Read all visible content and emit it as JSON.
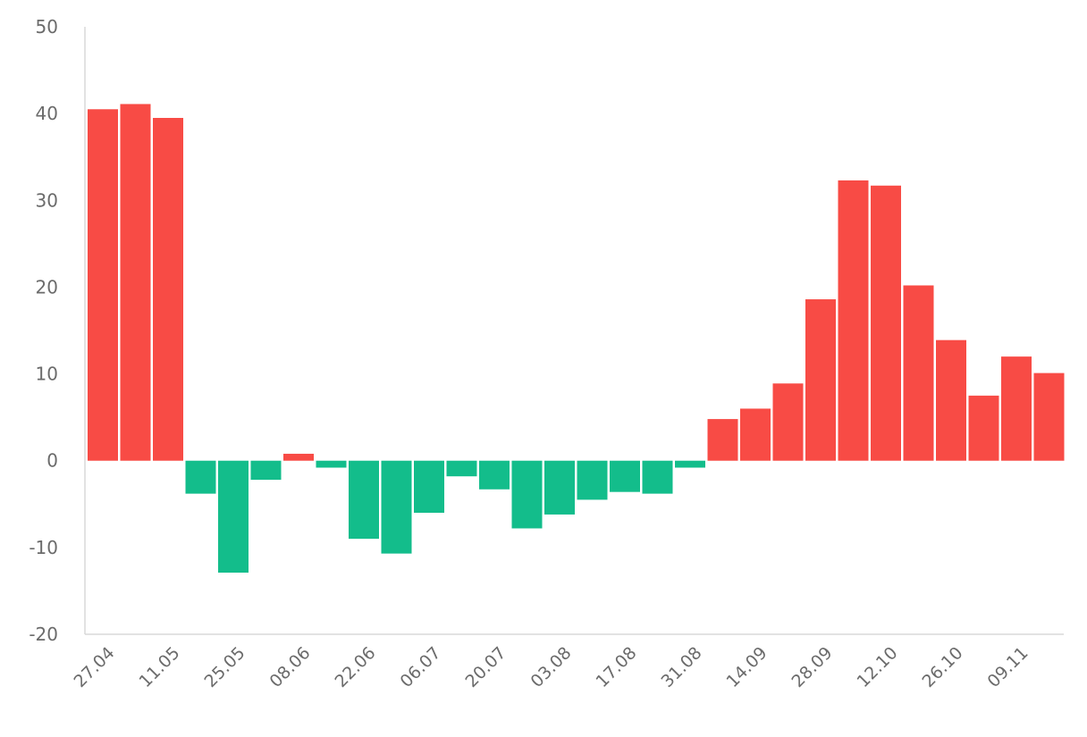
{
  "chart_data": {
    "type": "bar",
    "title": "",
    "xlabel": "",
    "ylabel": "",
    "ylim": [
      -20,
      50
    ],
    "yticks": [
      50,
      40,
      30,
      20,
      10,
      0,
      -10,
      -20
    ],
    "ytick_labels": [
      "50",
      "40",
      "30",
      "20",
      "10",
      "0",
      "-10",
      "-20"
    ],
    "categories": [
      "27.04",
      "04.05",
      "11.05",
      "18.05",
      "25.05",
      "01.06",
      "08.06",
      "15.06",
      "22.06",
      "29.06",
      "06.07",
      "13.07",
      "20.07",
      "27.07",
      "03.08",
      "10.08",
      "17.08",
      "24.08",
      "31.08",
      "07.09",
      "14.09",
      "21.09",
      "28.09",
      "05.10",
      "12.10",
      "19.10",
      "26.10",
      "02.11",
      "09.11",
      "16.11"
    ],
    "xtick_labels": [
      "27.04",
      "11.05",
      "25.05",
      "08.06",
      "22.06",
      "06.07",
      "20.07",
      "03.08",
      "17.08",
      "31.08",
      "14.09",
      "28.09",
      "12.10",
      "26.10",
      "09.11"
    ],
    "values": [
      40.5,
      41.1,
      39.5,
      -3.8,
      -12.9,
      -2.2,
      0.8,
      -0.8,
      -9.0,
      -10.7,
      -6.0,
      -1.8,
      -3.3,
      -7.8,
      -6.2,
      -4.5,
      -3.6,
      -3.8,
      -0.8,
      4.8,
      6.0,
      8.9,
      18.6,
      32.3,
      31.7,
      20.2,
      13.9,
      7.5,
      12.0,
      10.1
    ],
    "colors": {
      "positive": "#f84b45",
      "negative": "#13bd8b",
      "axis": "#d8d8d8",
      "tick_text": "#6b6b6b"
    }
  }
}
